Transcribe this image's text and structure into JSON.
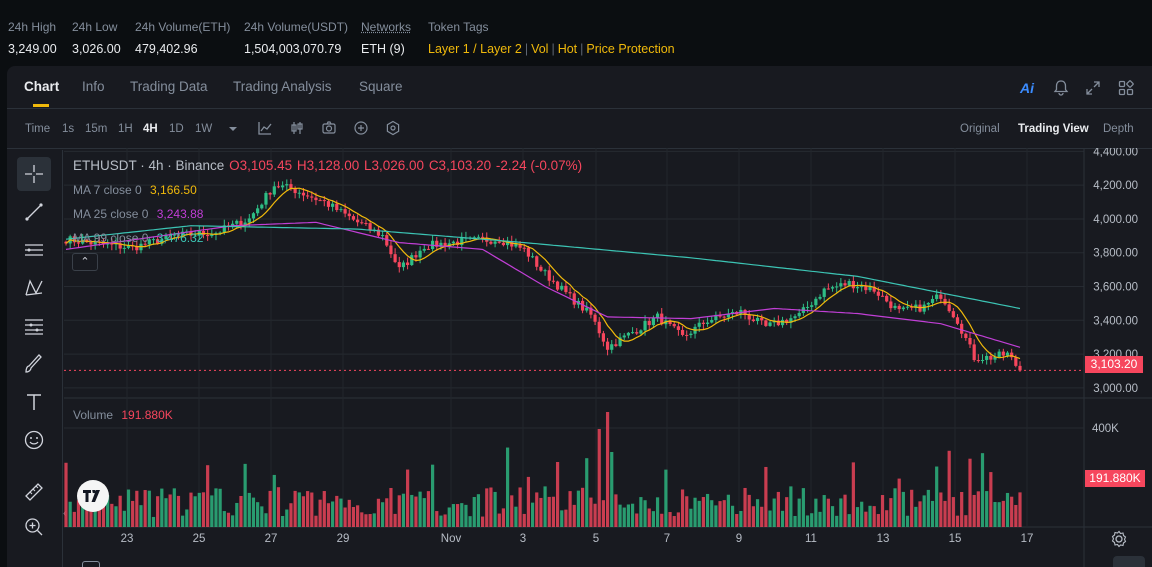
{
  "stats": [
    {
      "label": "24h High",
      "value": "3,249.00"
    },
    {
      "label": "24h Low",
      "value": "3,026.00"
    },
    {
      "label": "24h Volume(ETH)",
      "value": "479,402.96"
    },
    {
      "label": "24h Volume(USDT)",
      "value": "1,504,003,070.79"
    },
    {
      "label": "Networks",
      "value": "ETH (9)"
    }
  ],
  "token_tags": {
    "label": "Token Tags",
    "tags": [
      "Layer 1 / Layer 2",
      "Vol",
      "Hot",
      "Price Protection"
    ]
  },
  "tabs": [
    "Chart",
    "Info",
    "Trading Data",
    "Trading Analysis",
    "Square"
  ],
  "ai_label": "Ai",
  "toolbar": {
    "time_label": "Time",
    "intervals": [
      "1s",
      "15m",
      "1H",
      "4H",
      "1D",
      "1W"
    ],
    "active_interval": "4H",
    "views": [
      "Original",
      "Trading View",
      "Depth"
    ],
    "active_view": "Trading View"
  },
  "legend": {
    "symbol": "ETHUSDT · 4h · Binance",
    "open": "O3,105.45",
    "high": "H3,128.00",
    "low": "L3,026.00",
    "close": "C3,103.20",
    "change": "-2.24 (-0.07%)",
    "ma7_label": "MA 7 close 0",
    "ma7_value": "3,166.50",
    "ma25_label": "MA 25 close 0",
    "ma25_value": "3,243.88",
    "ma99_label": "MA 99 close 0",
    "ma99_value": "3,476.32",
    "volume_label": "Volume",
    "volume_value": "191.880K"
  },
  "colors": {
    "up": "#2ebd85",
    "down": "#f6465d",
    "ma7": "#f0b90b",
    "ma25": "#c13fd6",
    "ma99": "#3cc4b4",
    "accent": "#f0b90b"
  },
  "price_axis": [
    "4,400.00",
    "4,200.00",
    "4,000.00",
    "3,800.00",
    "3,600.00",
    "3,400.00",
    "3,200.00",
    "3,000.00"
  ],
  "last_price_label": "3,103.20",
  "volume_axis": [
    "400K"
  ],
  "volume_last_label": "191.880K",
  "date_axis": [
    "23",
    "25",
    "27",
    "29",
    "Nov",
    "3",
    "5",
    "7",
    "9",
    "11",
    "13",
    "15",
    "17"
  ],
  "chart_data": {
    "type": "candlestick",
    "interval": "4h",
    "ylim": [
      2940,
      4420
    ],
    "last_price": 3103.2,
    "ma": {
      "ma99_anchors": [
        [
          0,
          3880
        ],
        [
          30,
          3960
        ],
        [
          70,
          3940
        ],
        [
          110,
          3860
        ],
        [
          150,
          3770
        ],
        [
          190,
          3660
        ],
        [
          229,
          3470
        ]
      ],
      "ma25_anchors": [
        [
          0,
          3820
        ],
        [
          40,
          3960
        ],
        [
          60,
          3980
        ],
        [
          80,
          3860
        ],
        [
          100,
          3820
        ],
        [
          115,
          3600
        ],
        [
          130,
          3420
        ],
        [
          150,
          3410
        ],
        [
          170,
          3470
        ],
        [
          190,
          3440
        ],
        [
          210,
          3380
        ],
        [
          229,
          3240
        ]
      ]
    }
  }
}
